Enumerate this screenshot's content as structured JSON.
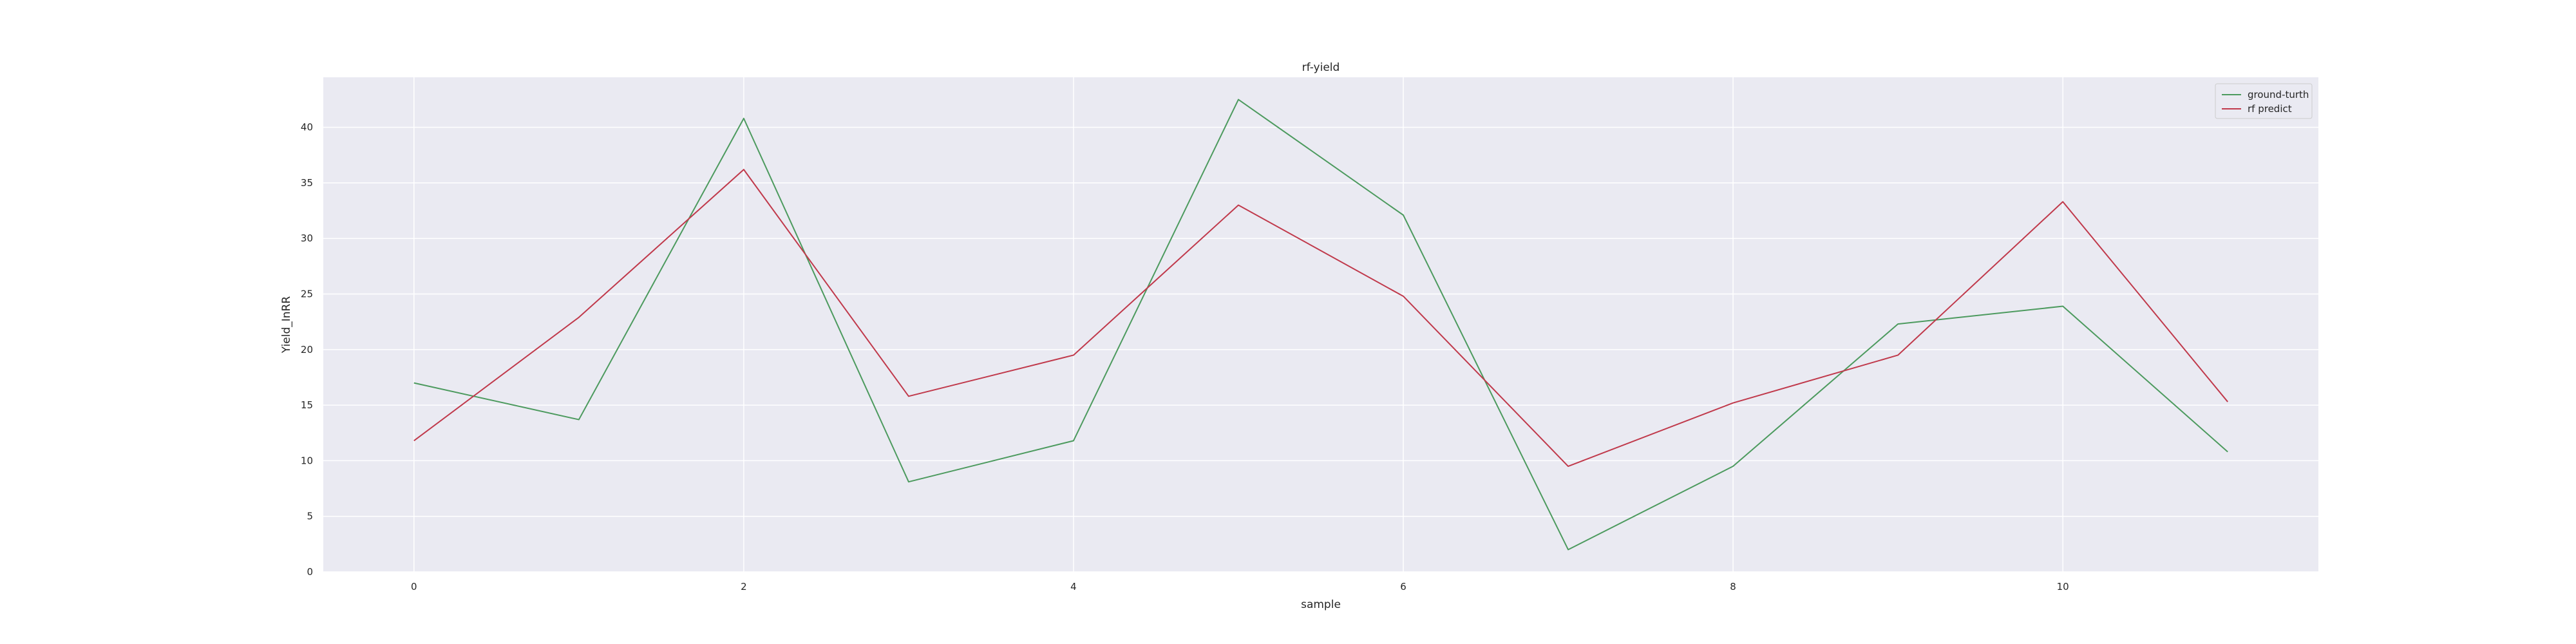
{
  "chart_data": {
    "type": "line",
    "title": "rf-yield",
    "xlabel": "sample",
    "ylabel": "Yield_InRR",
    "x": [
      0,
      1,
      2,
      3,
      4,
      5,
      6,
      7,
      8,
      9,
      10,
      11
    ],
    "xlim": [
      -0.55,
      11.55
    ],
    "ylim": [
      0,
      44.5
    ],
    "xticks": [
      0,
      2,
      4,
      6,
      8,
      10
    ],
    "yticks": [
      0,
      5,
      10,
      15,
      20,
      25,
      30,
      35,
      40
    ],
    "grid": true,
    "legend_position": "top-right",
    "series": [
      {
        "name": "ground-turth",
        "color": "#4c9a5e",
        "values": [
          17.0,
          13.7,
          40.8,
          8.1,
          11.8,
          42.5,
          32.1,
          2.0,
          9.5,
          22.3,
          23.9,
          10.8
        ]
      },
      {
        "name": "rf predict",
        "color": "#c0394b",
        "values": [
          11.8,
          22.9,
          36.2,
          15.8,
          19.5,
          33.0,
          24.8,
          9.5,
          15.2,
          19.5,
          33.3,
          15.3
        ]
      }
    ]
  }
}
